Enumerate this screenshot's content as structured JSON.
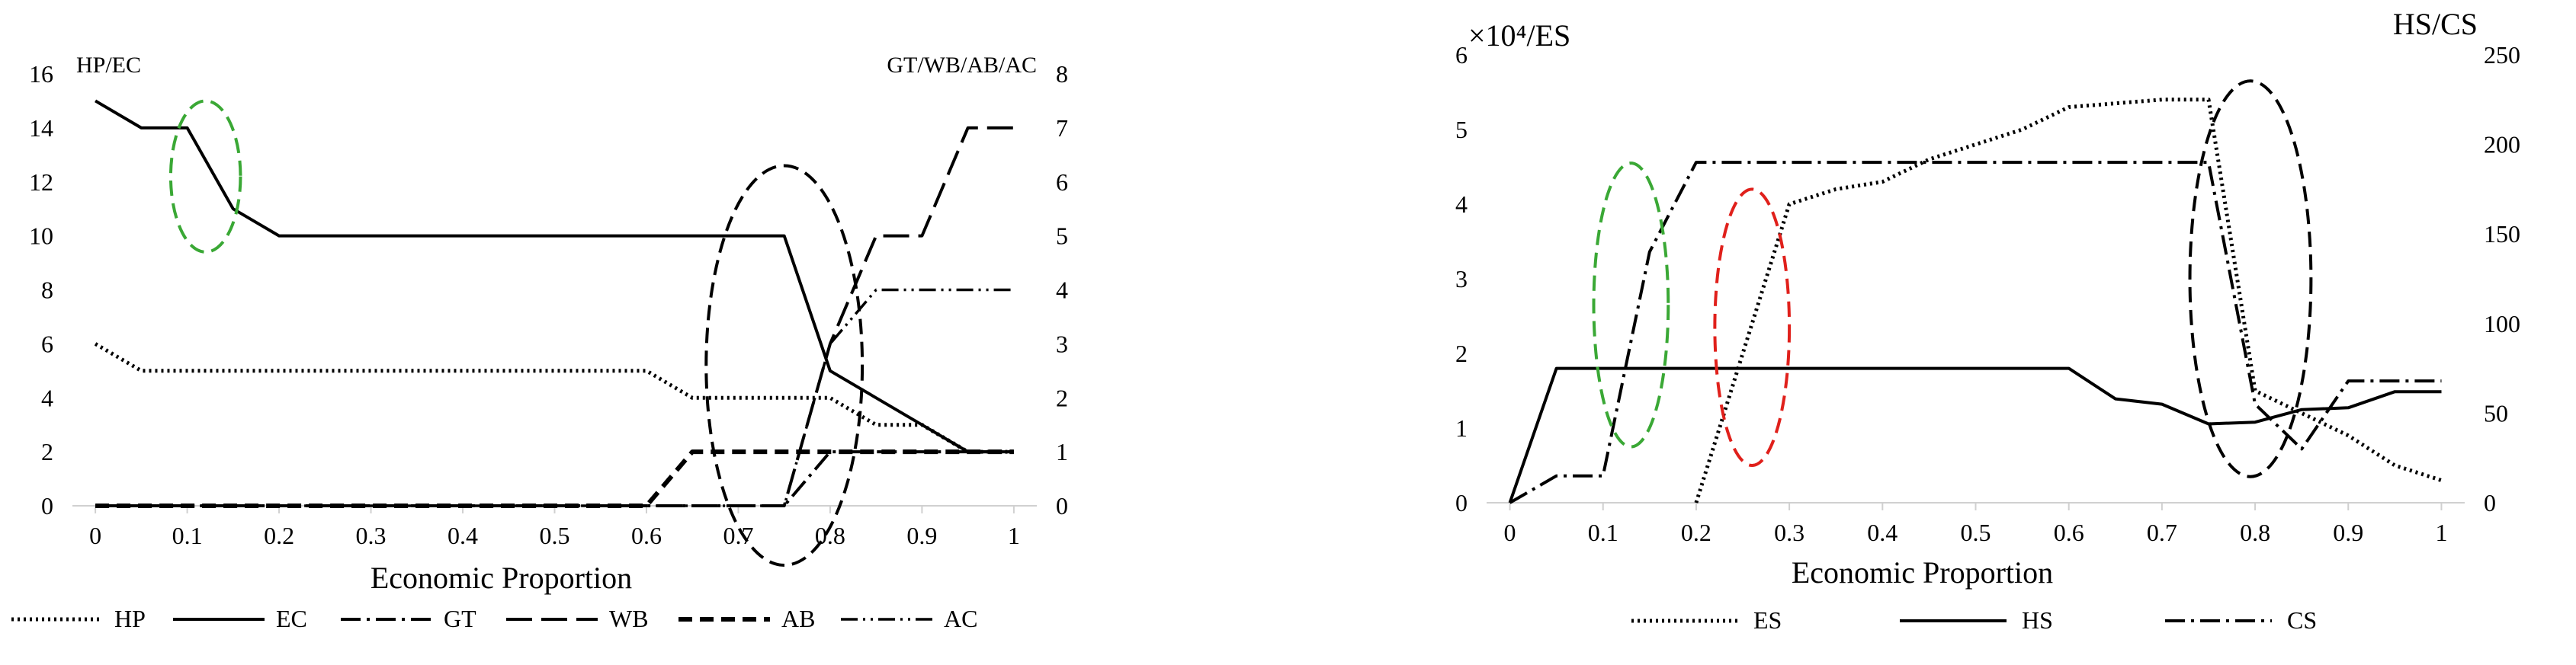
{
  "chart_data": [
    {
      "type": "line",
      "xlabel": "Economic Proportion",
      "ylabel_left": "HP/EC",
      "ylabel_right": "GT/WB/AB/AC",
      "x_ticks": [
        "0",
        "0.1",
        "0.2",
        "0.3",
        "0.4",
        "0.5",
        "0.6",
        "0.7",
        "0.8",
        "0.9",
        "1"
      ],
      "y_left_ticks": [
        "0",
        "2",
        "4",
        "6",
        "8",
        "10",
        "12",
        "14",
        "16"
      ],
      "y_right_ticks": [
        "0",
        "1",
        "2",
        "3",
        "4",
        "5",
        "6",
        "7",
        "8"
      ],
      "xlim": [
        -0.025,
        1.025
      ],
      "ylim_left": [
        0,
        16
      ],
      "ylim_right": [
        0,
        8
      ],
      "legend_position": "bottom",
      "series": [
        {
          "name": "HP",
          "axis": "left",
          "style": "dotted",
          "x": [
            0,
            0.05,
            0.1,
            0.15,
            0.2,
            0.25,
            0.3,
            0.35,
            0.4,
            0.45,
            0.5,
            0.55,
            0.6,
            0.65,
            0.7,
            0.75,
            0.8,
            0.85,
            0.9,
            0.95,
            1
          ],
          "y": [
            6,
            5,
            5,
            5,
            5,
            5,
            5,
            5,
            5,
            5,
            5,
            5,
            5,
            4,
            4,
            4,
            4,
            3,
            3,
            2,
            2
          ]
        },
        {
          "name": "EC",
          "axis": "left",
          "style": "solid",
          "x": [
            0,
            0.05,
            0.1,
            0.15,
            0.2,
            0.25,
            0.3,
            0.35,
            0.4,
            0.45,
            0.5,
            0.55,
            0.6,
            0.65,
            0.7,
            0.75,
            0.8,
            0.85,
            0.9,
            0.95,
            1
          ],
          "y": [
            15,
            14,
            14,
            11,
            10,
            10,
            10,
            10,
            10,
            10,
            10,
            10,
            10,
            10,
            10,
            10,
            5,
            4,
            3,
            2,
            2
          ]
        },
        {
          "name": "GT",
          "axis": "right",
          "style": "dashdot",
          "x": [
            0,
            0.05,
            0.1,
            0.15,
            0.2,
            0.25,
            0.3,
            0.35,
            0.4,
            0.45,
            0.5,
            0.55,
            0.6,
            0.65,
            0.7,
            0.75,
            0.8,
            0.85,
            0.9,
            0.95,
            1
          ],
          "y": [
            0,
            0,
            0,
            0,
            0,
            0,
            0,
            0,
            0,
            0,
            0,
            0,
            0,
            0,
            0,
            0,
            1,
            1,
            1,
            1,
            1
          ]
        },
        {
          "name": "WB",
          "axis": "right",
          "style": "longdash",
          "x": [
            0,
            0.05,
            0.1,
            0.15,
            0.2,
            0.25,
            0.3,
            0.35,
            0.4,
            0.45,
            0.5,
            0.55,
            0.6,
            0.65,
            0.7,
            0.75,
            0.8,
            0.85,
            0.9,
            0.95,
            1
          ],
          "y": [
            0,
            0,
            0,
            0,
            0,
            0,
            0,
            0,
            0,
            0,
            0,
            0,
            0,
            0,
            0,
            0,
            3,
            5,
            5,
            7,
            7
          ]
        },
        {
          "name": "AB",
          "axis": "right",
          "style": "dashed",
          "x": [
            0,
            0.05,
            0.1,
            0.15,
            0.2,
            0.25,
            0.3,
            0.35,
            0.4,
            0.45,
            0.5,
            0.55,
            0.6,
            0.65,
            0.7,
            0.75,
            0.8,
            0.85,
            0.9,
            0.95,
            1
          ],
          "y": [
            0,
            0,
            0,
            0,
            0,
            0,
            0,
            0,
            0,
            0,
            0,
            0,
            0,
            1,
            1,
            1,
            1,
            1,
            1,
            1,
            1
          ]
        },
        {
          "name": "AC",
          "axis": "right",
          "style": "dashdotdot",
          "x": [
            0,
            0.05,
            0.1,
            0.15,
            0.2,
            0.25,
            0.3,
            0.35,
            0.4,
            0.45,
            0.5,
            0.55,
            0.6,
            0.65,
            0.7,
            0.75,
            0.8,
            0.85,
            0.9,
            0.95,
            1
          ],
          "y": [
            0,
            0,
            0,
            0,
            0,
            0,
            0,
            0,
            0,
            0,
            0,
            0,
            0,
            0,
            0,
            0,
            3,
            4,
            4,
            4,
            4
          ]
        }
      ],
      "annotations": [
        {
          "shape": "ellipse",
          "color": "#3aa835",
          "cx": 0.12,
          "cy": 12.2,
          "rx": 0.038,
          "ry": 2.8
        },
        {
          "shape": "ellipse",
          "color": "#000000",
          "cx": 0.75,
          "cy": 5.2,
          "rx": 0.085,
          "ry": 7.4
        }
      ]
    },
    {
      "type": "line",
      "xlabel": "Economic Proportion",
      "ylabel_left": "×10⁴/ES",
      "ylabel_right": "HS/CS",
      "x_ticks": [
        "0",
        "0.1",
        "0.2",
        "0.3",
        "0.4",
        "0.5",
        "0.6",
        "0.7",
        "0.8",
        "0.9",
        "1"
      ],
      "y_left_ticks": [
        "0",
        "1",
        "2",
        "3",
        "4",
        "5",
        "6"
      ],
      "y_right_ticks": [
        "0",
        "50",
        "100",
        "150",
        "200",
        "250"
      ],
      "xlim": [
        -0.025,
        1.025
      ],
      "ylim_left": [
        0,
        6
      ],
      "ylim_right": [
        0,
        250
      ],
      "legend_position": "bottom",
      "series": [
        {
          "name": "ES",
          "axis": "left",
          "style": "dotted",
          "x": [
            0.2,
            0.25,
            0.3,
            0.35,
            0.4,
            0.45,
            0.5,
            0.55,
            0.6,
            0.65,
            0.7,
            0.75,
            0.8,
            0.85,
            0.9,
            0.95,
            1
          ],
          "y": [
            0,
            2,
            4,
            4.2,
            4.3,
            4.6,
            4.8,
            5,
            5.3,
            5.35,
            5.4,
            5.4,
            1.5,
            1.2,
            0.9,
            0.5,
            0.3
          ]
        },
        {
          "name": "HS",
          "axis": "right",
          "style": "solid",
          "x": [
            0,
            0.05,
            0.1,
            0.15,
            0.2,
            0.25,
            0.3,
            0.35,
            0.4,
            0.45,
            0.5,
            0.55,
            0.6,
            0.65,
            0.7,
            0.75,
            0.8,
            0.85,
            0.9,
            0.95,
            1
          ],
          "y": [
            0,
            75,
            75,
            75,
            75,
            75,
            75,
            75,
            75,
            75,
            75,
            75,
            75,
            58,
            55,
            44,
            45,
            52,
            53,
            62,
            62
          ]
        },
        {
          "name": "CS",
          "axis": "right",
          "style": "dashdot",
          "x": [
            0,
            0.05,
            0.1,
            0.15,
            0.2,
            0.25,
            0.3,
            0.35,
            0.4,
            0.45,
            0.5,
            0.55,
            0.6,
            0.65,
            0.7,
            0.75,
            0.8,
            0.85,
            0.9,
            0.95,
            1
          ],
          "y": [
            0,
            15,
            15,
            140,
            190,
            190,
            190,
            190,
            190,
            190,
            190,
            190,
            190,
            190,
            190,
            190,
            55,
            30,
            68,
            68,
            68
          ]
        }
      ],
      "annotations": [
        {
          "shape": "ellipse",
          "color": "#3aa835",
          "cx": 0.13,
          "cy": 2.65,
          "rx": 0.04,
          "ry": 1.9
        },
        {
          "shape": "ellipse",
          "color": "#e0201b",
          "cx": 0.26,
          "cy": 2.35,
          "rx": 0.04,
          "ry": 1.85
        },
        {
          "shape": "ellipse",
          "color": "#000000",
          "cx": 0.795,
          "cy": 3.0,
          "rx": 0.065,
          "ry": 2.65
        }
      ]
    }
  ]
}
